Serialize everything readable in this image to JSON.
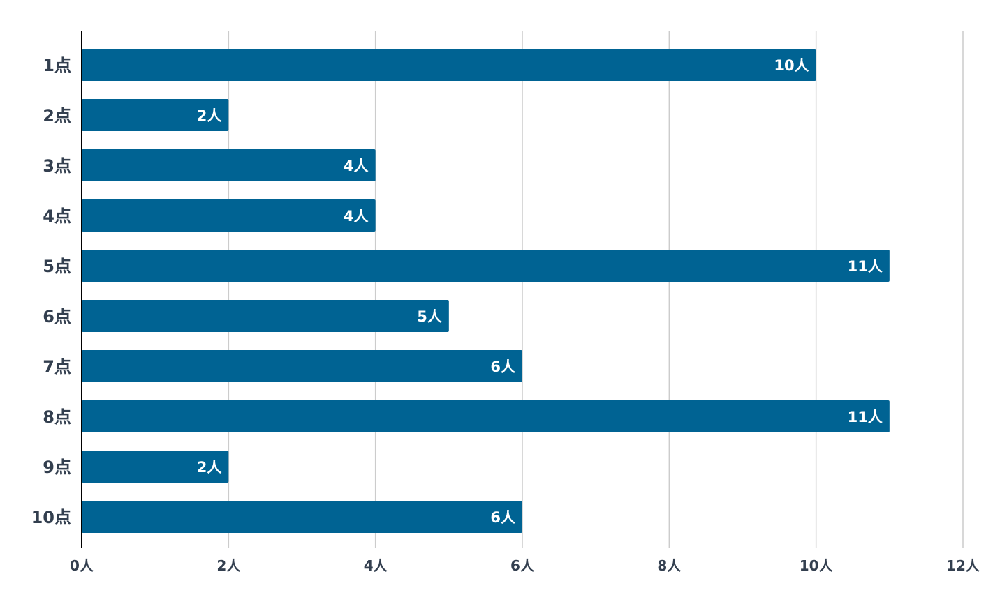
{
  "chart_data": {
    "type": "bar",
    "orientation": "horizontal",
    "categories": [
      "1点",
      "2点",
      "3点",
      "4点",
      "5点",
      "6点",
      "7点",
      "8点",
      "9点",
      "10点"
    ],
    "values": [
      10,
      2,
      4,
      4,
      11,
      5,
      6,
      11,
      2,
      6
    ],
    "data_labels": [
      "10人",
      "2人",
      "4人",
      "4人",
      "11人",
      "5人",
      "6人",
      "11人",
      "2人",
      "6人"
    ],
    "x_ticks": [
      0,
      2,
      4,
      6,
      8,
      10,
      12
    ],
    "x_tick_labels": [
      "0人",
      "2人",
      "4人",
      "6人",
      "8人",
      "10人",
      "12人"
    ],
    "xlim": [
      0,
      12
    ],
    "grid": true,
    "legend": "none",
    "title": "",
    "xlabel": "",
    "ylabel": "",
    "colors": {
      "bar": "#006393",
      "grid": "#cccccc",
      "axis": "#000000",
      "label": "#333f4f",
      "data_label": "#ffffff"
    }
  }
}
